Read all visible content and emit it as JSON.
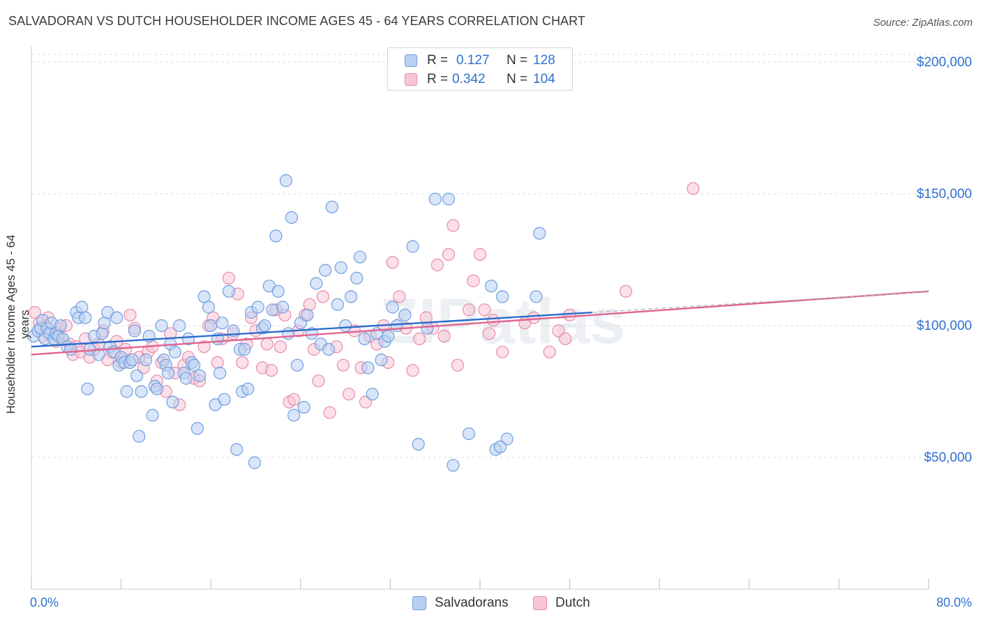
{
  "title": "SALVADORAN VS DUTCH HOUSEHOLDER INCOME AGES 45 - 64 YEARS CORRELATION CHART",
  "source": "Source: ZipAtlas.com",
  "watermark": "ZIPatlas",
  "colors": {
    "salvadorans": "#6f9fde",
    "salvadorans_fill": "#b9d0f2",
    "salvadorans_line": "#2d6ccc",
    "dutch": "#e88aab",
    "dutch_fill": "#f7c6d6",
    "dutch_line": "#e0648f",
    "tick_label": "#2f6fd1",
    "grid": "#dddddd"
  },
  "legend": {
    "rows": [
      {
        "r_label": "R =",
        "r_value": "0.127",
        "n_label": "N =",
        "n_value": "128"
      },
      {
        "r_label": "R =",
        "r_value": "0.342",
        "n_label": "N =",
        "n_value": "104"
      }
    ]
  },
  "bottom_legend": [
    "Salvadorans",
    "Dutch"
  ],
  "chart_data": {
    "type": "scatter",
    "title": "SALVADORAN VS DUTCH HOUSEHOLDER INCOME AGES 45 - 64 YEARS CORRELATION CHART",
    "xlabel": "",
    "ylabel": "Householder Income Ages 45 - 64 years",
    "xlim": [
      0,
      80
    ],
    "ylim": [
      0,
      205000
    ],
    "x_tick_labels": [
      "0.0%",
      "80.0%"
    ],
    "y_ticks": [
      50000,
      100000,
      150000,
      200000
    ],
    "y_tick_labels": [
      "$50,000",
      "$100,000",
      "$150,000",
      "$200,000"
    ],
    "grid": "horizontal dashed",
    "legend_position": "top-center",
    "series": [
      {
        "name": "Salvadorans",
        "R": 0.127,
        "N": 128,
        "trend": {
          "x": [
            0,
            50
          ],
          "y": [
            92000,
            105000
          ]
        },
        "points": [
          [
            0.2,
            96000
          ],
          [
            0.6,
            98000
          ],
          [
            0.8,
            99000
          ],
          [
            1.0,
            102000
          ],
          [
            1.2,
            95000
          ],
          [
            1.4,
            99000
          ],
          [
            1.6,
            97000
          ],
          [
            1.8,
            101000
          ],
          [
            2.0,
            95000
          ],
          [
            2.2,
            97000
          ],
          [
            2.4,
            96000
          ],
          [
            2.6,
            100000
          ],
          [
            2.8,
            95000
          ],
          [
            3.2,
            92000
          ],
          [
            3.5,
            91000
          ],
          [
            4.0,
            105000
          ],
          [
            4.2,
            103000
          ],
          [
            4.5,
            107000
          ],
          [
            4.8,
            103000
          ],
          [
            5.0,
            76000
          ],
          [
            5.2,
            91000
          ],
          [
            5.6,
            96000
          ],
          [
            6.0,
            89000
          ],
          [
            6.3,
            97000
          ],
          [
            6.5,
            101000
          ],
          [
            6.8,
            105000
          ],
          [
            7.0,
            92000
          ],
          [
            7.4,
            90000
          ],
          [
            7.6,
            103000
          ],
          [
            7.8,
            85000
          ],
          [
            8.0,
            88000
          ],
          [
            8.3,
            86000
          ],
          [
            8.5,
            75000
          ],
          [
            8.8,
            86000
          ],
          [
            9.0,
            87000
          ],
          [
            9.2,
            98000
          ],
          [
            9.4,
            81000
          ],
          [
            9.6,
            58000
          ],
          [
            9.8,
            75000
          ],
          [
            10.2,
            87000
          ],
          [
            10.5,
            96000
          ],
          [
            10.8,
            66000
          ],
          [
            11.0,
            77000
          ],
          [
            11.2,
            76000
          ],
          [
            11.6,
            100000
          ],
          [
            11.8,
            87000
          ],
          [
            12.0,
            85000
          ],
          [
            12.2,
            82000
          ],
          [
            12.4,
            93000
          ],
          [
            12.6,
            71000
          ],
          [
            12.8,
            90000
          ],
          [
            13.2,
            100000
          ],
          [
            13.6,
            82000
          ],
          [
            13.8,
            80000
          ],
          [
            14.0,
            95000
          ],
          [
            14.3,
            86000
          ],
          [
            14.5,
            85000
          ],
          [
            14.8,
            61000
          ],
          [
            15.0,
            81000
          ],
          [
            15.4,
            111000
          ],
          [
            15.8,
            107000
          ],
          [
            16.0,
            100000
          ],
          [
            16.4,
            70000
          ],
          [
            16.6,
            95000
          ],
          [
            16.8,
            82000
          ],
          [
            17.0,
            101000
          ],
          [
            17.2,
            72000
          ],
          [
            17.6,
            113000
          ],
          [
            18.0,
            98000
          ],
          [
            18.3,
            53000
          ],
          [
            18.6,
            91000
          ],
          [
            18.8,
            75000
          ],
          [
            19.0,
            91000
          ],
          [
            19.3,
            76000
          ],
          [
            19.6,
            105000
          ],
          [
            19.9,
            48000
          ],
          [
            20.2,
            107000
          ],
          [
            20.6,
            99000
          ],
          [
            20.8,
            100000
          ],
          [
            21.2,
            115000
          ],
          [
            21.5,
            106000
          ],
          [
            21.8,
            134000
          ],
          [
            22.0,
            113000
          ],
          [
            22.4,
            107000
          ],
          [
            22.7,
            155000
          ],
          [
            22.9,
            97000
          ],
          [
            23.2,
            141000
          ],
          [
            23.4,
            66000
          ],
          [
            23.7,
            85000
          ],
          [
            24.0,
            101000
          ],
          [
            24.3,
            69000
          ],
          [
            24.6,
            104000
          ],
          [
            25.0,
            97000
          ],
          [
            25.4,
            116000
          ],
          [
            25.8,
            93000
          ],
          [
            26.2,
            121000
          ],
          [
            26.5,
            91000
          ],
          [
            26.8,
            145000
          ],
          [
            27.3,
            108000
          ],
          [
            27.6,
            122000
          ],
          [
            28.0,
            100000
          ],
          [
            28.5,
            111000
          ],
          [
            29.0,
            118000
          ],
          [
            29.3,
            126000
          ],
          [
            29.7,
            95000
          ],
          [
            30.0,
            84000
          ],
          [
            30.4,
            74000
          ],
          [
            30.8,
            97000
          ],
          [
            31.2,
            87000
          ],
          [
            31.5,
            94000
          ],
          [
            31.8,
            96000
          ],
          [
            32.2,
            107000
          ],
          [
            32.6,
            100000
          ],
          [
            33.3,
            104000
          ],
          [
            34.0,
            130000
          ],
          [
            34.5,
            55000
          ],
          [
            35.3,
            99000
          ],
          [
            36.0,
            148000
          ],
          [
            37.2,
            148000
          ],
          [
            37.6,
            47000
          ],
          [
            41.0,
            115000
          ],
          [
            41.4,
            53000
          ],
          [
            42.0,
            111000
          ],
          [
            42.4,
            57000
          ],
          [
            41.8,
            54000
          ],
          [
            39.0,
            59000
          ],
          [
            45.3,
            135000
          ],
          [
            45.0,
            111000
          ]
        ]
      },
      {
        "name": "Dutch",
        "R": 0.342,
        "N": 104,
        "trend": {
          "x": [
            0,
            80
          ],
          "y": [
            89000,
            113000
          ]
        },
        "points": [
          [
            0.3,
            105000
          ],
          [
            0.7,
            101000
          ],
          [
            1.0,
            96000
          ],
          [
            1.3,
            100000
          ],
          [
            1.5,
            103000
          ],
          [
            1.8,
            97000
          ],
          [
            2.2,
            94000
          ],
          [
            2.5,
            99000
          ],
          [
            2.8,
            95000
          ],
          [
            3.1,
            100000
          ],
          [
            3.4,
            93000
          ],
          [
            3.7,
            89000
          ],
          [
            4.0,
            92000
          ],
          [
            4.4,
            90000
          ],
          [
            4.8,
            95000
          ],
          [
            5.2,
            88000
          ],
          [
            5.6,
            91000
          ],
          [
            6.0,
            93000
          ],
          [
            6.4,
            98000
          ],
          [
            6.8,
            87000
          ],
          [
            7.2,
            90000
          ],
          [
            7.6,
            94000
          ],
          [
            8.0,
            86000
          ],
          [
            8.4,
            91000
          ],
          [
            8.8,
            104000
          ],
          [
            9.2,
            99000
          ],
          [
            9.6,
            88000
          ],
          [
            10.0,
            84000
          ],
          [
            10.4,
            90000
          ],
          [
            10.8,
            92000
          ],
          [
            11.2,
            79000
          ],
          [
            11.6,
            86000
          ],
          [
            12.0,
            75000
          ],
          [
            12.4,
            97000
          ],
          [
            12.8,
            82000
          ],
          [
            13.2,
            70000
          ],
          [
            13.6,
            85000
          ],
          [
            14.0,
            88000
          ],
          [
            14.5,
            80000
          ],
          [
            15.0,
            79000
          ],
          [
            15.4,
            92000
          ],
          [
            15.8,
            100000
          ],
          [
            16.2,
            103000
          ],
          [
            16.6,
            86000
          ],
          [
            17.0,
            95000
          ],
          [
            17.6,
            118000
          ],
          [
            18.0,
            97000
          ],
          [
            18.4,
            112000
          ],
          [
            18.8,
            86000
          ],
          [
            19.2,
            93000
          ],
          [
            19.6,
            103000
          ],
          [
            20.0,
            98000
          ],
          [
            20.6,
            84000
          ],
          [
            21.0,
            93000
          ],
          [
            21.4,
            83000
          ],
          [
            21.8,
            106000
          ],
          [
            22.2,
            92000
          ],
          [
            22.6,
            104000
          ],
          [
            23.0,
            71000
          ],
          [
            23.4,
            72000
          ],
          [
            23.8,
            98000
          ],
          [
            24.4,
            104000
          ],
          [
            24.8,
            108000
          ],
          [
            25.2,
            91000
          ],
          [
            25.6,
            79000
          ],
          [
            26.0,
            111000
          ],
          [
            26.6,
            67000
          ],
          [
            27.2,
            92000
          ],
          [
            27.8,
            85000
          ],
          [
            28.3,
            74000
          ],
          [
            28.8,
            98000
          ],
          [
            29.4,
            84000
          ],
          [
            29.8,
            71000
          ],
          [
            30.2,
            96000
          ],
          [
            30.8,
            93000
          ],
          [
            31.4,
            100000
          ],
          [
            31.8,
            86000
          ],
          [
            32.2,
            124000
          ],
          [
            32.8,
            111000
          ],
          [
            33.4,
            99000
          ],
          [
            34.0,
            83000
          ],
          [
            34.6,
            95000
          ],
          [
            35.2,
            103000
          ],
          [
            35.8,
            99000
          ],
          [
            36.2,
            123000
          ],
          [
            36.8,
            96000
          ],
          [
            37.2,
            127000
          ],
          [
            37.6,
            138000
          ],
          [
            38.0,
            85000
          ],
          [
            39.0,
            106000
          ],
          [
            39.4,
            117000
          ],
          [
            40.0,
            127000
          ],
          [
            40.4,
            106000
          ],
          [
            40.8,
            97000
          ],
          [
            41.2,
            102000
          ],
          [
            42.0,
            90000
          ],
          [
            44.0,
            101000
          ],
          [
            44.8,
            103000
          ],
          [
            46.2,
            90000
          ],
          [
            47.0,
            98000
          ],
          [
            47.6,
            95000
          ],
          [
            48.0,
            104000
          ],
          [
            53.0,
            113000
          ],
          [
            59.0,
            152000
          ]
        ]
      }
    ]
  }
}
